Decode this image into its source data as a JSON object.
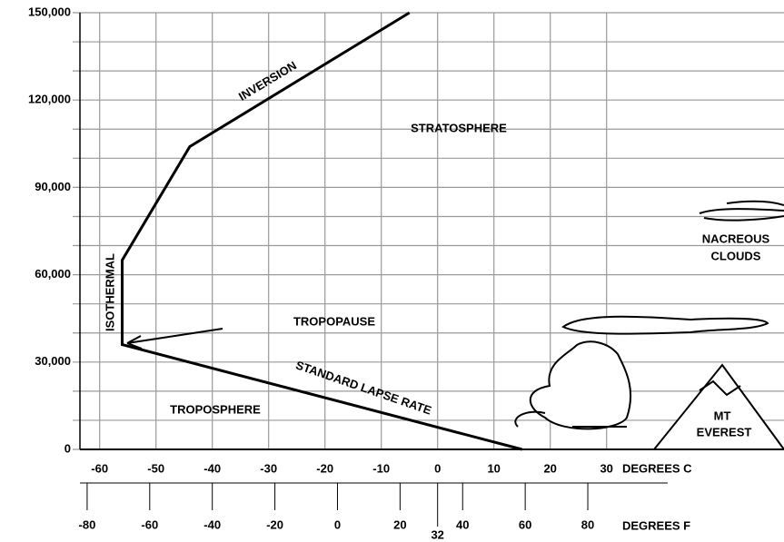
{
  "chart_data": {
    "type": "line",
    "x": [
      15,
      -56,
      -56,
      -44,
      -5
    ],
    "series": [
      {
        "name": null,
        "color": "#000000",
        "values": [
          0,
          36000,
          65000,
          104000,
          150000
        ]
      }
    ],
    "xlim": [
      -63.5,
      61.5
    ],
    "xticks": [
      -60,
      -50,
      -40,
      -30,
      -20,
      -10,
      0,
      10,
      20,
      30
    ],
    "xlabel": "DEGREES C",
    "x2lim": [
      -82.3,
      142.7
    ],
    "x2ticks": [
      -80,
      -60,
      -40,
      -20,
      0,
      20,
      32,
      40,
      60,
      80
    ],
    "x2label": "DEGREES F",
    "ylim": [
      0,
      150000
    ],
    "yticks": [
      0,
      {
        "value": 30000,
        "label": "30,000"
      },
      {
        "value": 60000,
        "label": "60,000"
      },
      {
        "value": 90000,
        "label": "90,000"
      },
      {
        "value": 120000,
        "label": "120,000"
      },
      {
        "value": 150000,
        "label": "150,000"
      }
    ],
    "y_minor_ticks": [
      10000,
      20000,
      40000,
      50000,
      70000,
      80000,
      100000,
      110000,
      130000,
      140000
    ],
    "grid": true,
    "annotations": [
      "INVERSION",
      "STRATOSPHERE",
      "NACREOUS",
      "CLOUDS",
      "TROPOPAUSE",
      "ISOTHERMAL",
      "STANDARD LAPSE RATE",
      "TROPOSPHERE",
      "MT",
      "EVEREST"
    ]
  }
}
